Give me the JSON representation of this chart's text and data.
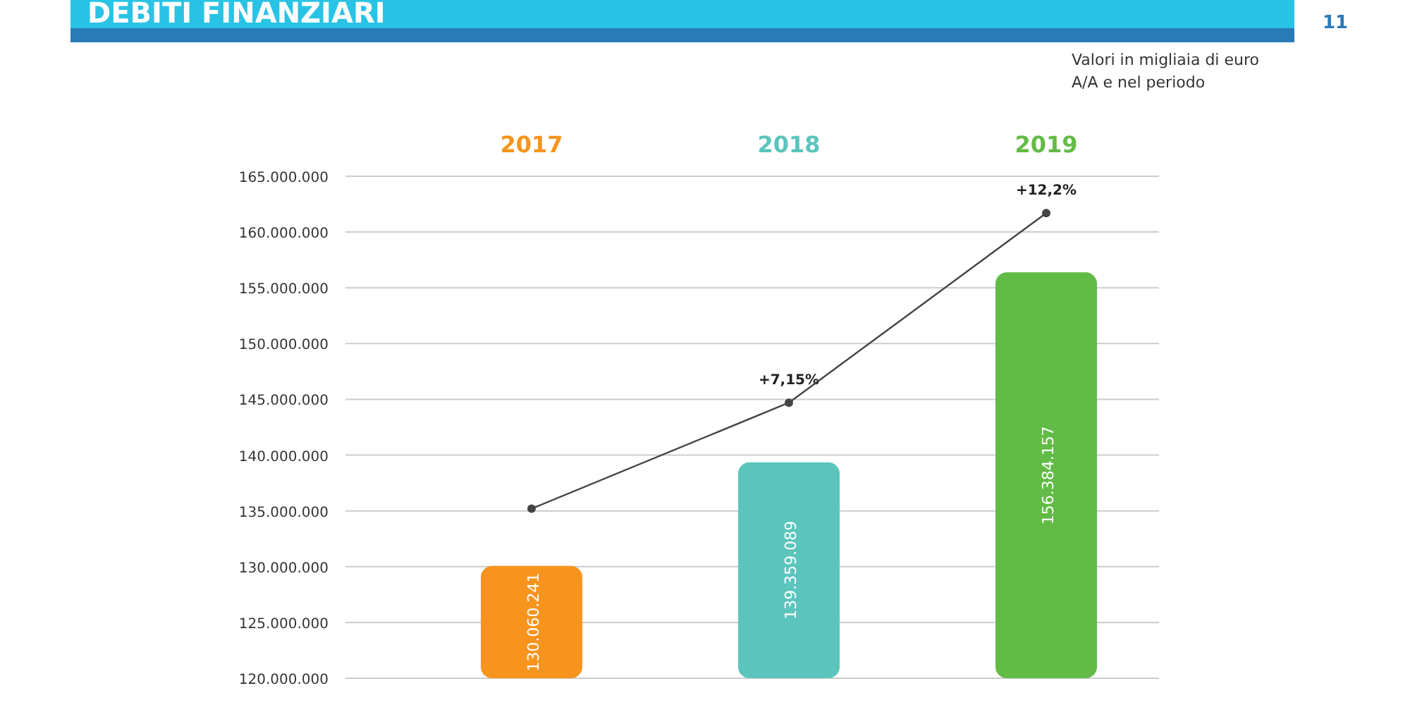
{
  "chart_data": {
    "type": "bar",
    "title": "DEBITI FINANZIARI",
    "subtitle": "Valori in migliaia di euro",
    "annotations": [
      "A/A e nel periodo",
      "11",
      {
        "text": "+7,15%",
        "x": "2018",
        "y": 144700000
      },
      {
        "text": "+12,2%",
        "x": "2019",
        "y": 161700000
      }
    ],
    "categories": [
      "2017",
      "2018",
      "2019"
    ],
    "series": [
      {
        "colors": [
          "#f7941d",
          "#5bc5bd",
          "#62bb46"
        ],
        "values": [
          130060241,
          139359089,
          156384157
        ],
        "value_labels": [
          "130.060.241",
          "139.359.089",
          "156.384.157"
        ]
      },
      {
        "type": "line",
        "color": "#444444",
        "values": [
          135200000,
          144700000,
          161700000
        ]
      }
    ],
    "marker": "circle",
    "grid": "y",
    "ylim": [
      120000000,
      165000000
    ],
    "yticks": [
      {
        "value": 120000000,
        "label": "120.000.000"
      },
      {
        "value": 125000000,
        "label": "125.000.000"
      },
      {
        "value": 130000000,
        "label": "130.000.000"
      },
      {
        "value": 135000000,
        "label": "135.000.000"
      },
      {
        "value": 140000000,
        "label": "140.000.000"
      },
      {
        "value": 145000000,
        "label": "145.000.000"
      },
      {
        "value": 150000000,
        "label": "150.000.000"
      },
      {
        "value": 155000000,
        "label": "155.000.000"
      },
      {
        "value": 160000000,
        "label": "160.000.000"
      },
      {
        "value": 165000000,
        "label": "165.000.000"
      }
    ]
  }
}
